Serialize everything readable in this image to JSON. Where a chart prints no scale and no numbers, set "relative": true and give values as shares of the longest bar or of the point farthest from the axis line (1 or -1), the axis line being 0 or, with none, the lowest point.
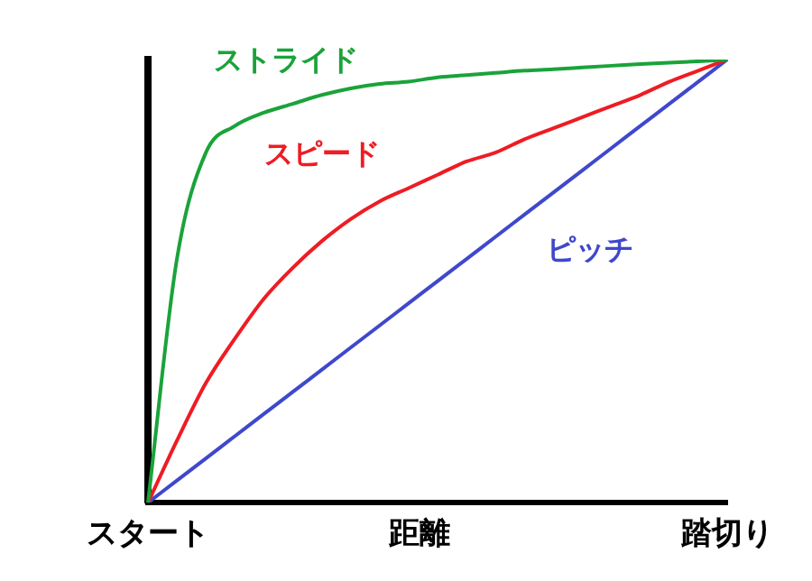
{
  "chart_data": {
    "type": "line",
    "relative": true,
    "xlabel": "距離",
    "categories": [
      "スタート",
      null,
      null,
      null,
      null,
      null,
      null,
      null,
      null,
      null,
      null,
      null,
      null,
      null,
      null,
      null,
      null,
      null,
      null,
      null,
      "踏切り"
    ],
    "series": [
      {
        "name": "ストライド",
        "color": "#1aa33a",
        "values": [
          0,
          0.55,
          0.79,
          0.85,
          0.88,
          0.9,
          0.92,
          0.935,
          0.945,
          0.95,
          0.96,
          0.965,
          0.97,
          0.975,
          0.978,
          0.982,
          0.986,
          0.99,
          0.993,
          0.996,
          1
        ]
      },
      {
        "name": "スピード",
        "color": "#ee1c24",
        "values": [
          0,
          0.14,
          0.27,
          0.37,
          0.46,
          0.53,
          0.59,
          0.64,
          0.68,
          0.71,
          0.74,
          0.77,
          0.79,
          0.82,
          0.845,
          0.87,
          0.895,
          0.92,
          0.95,
          0.975,
          1
        ]
      },
      {
        "name": "ピッチ",
        "color": "#3f48cc",
        "values": [
          0,
          0.05,
          0.1,
          0.15,
          0.2,
          0.25,
          0.3,
          0.35,
          0.4,
          0.45,
          0.5,
          0.55,
          0.6,
          0.65,
          0.7,
          0.75,
          0.8,
          0.85,
          0.9,
          0.95,
          1
        ]
      }
    ],
    "legend": false,
    "marker": "none",
    "line_style": "solid",
    "grid": false
  }
}
